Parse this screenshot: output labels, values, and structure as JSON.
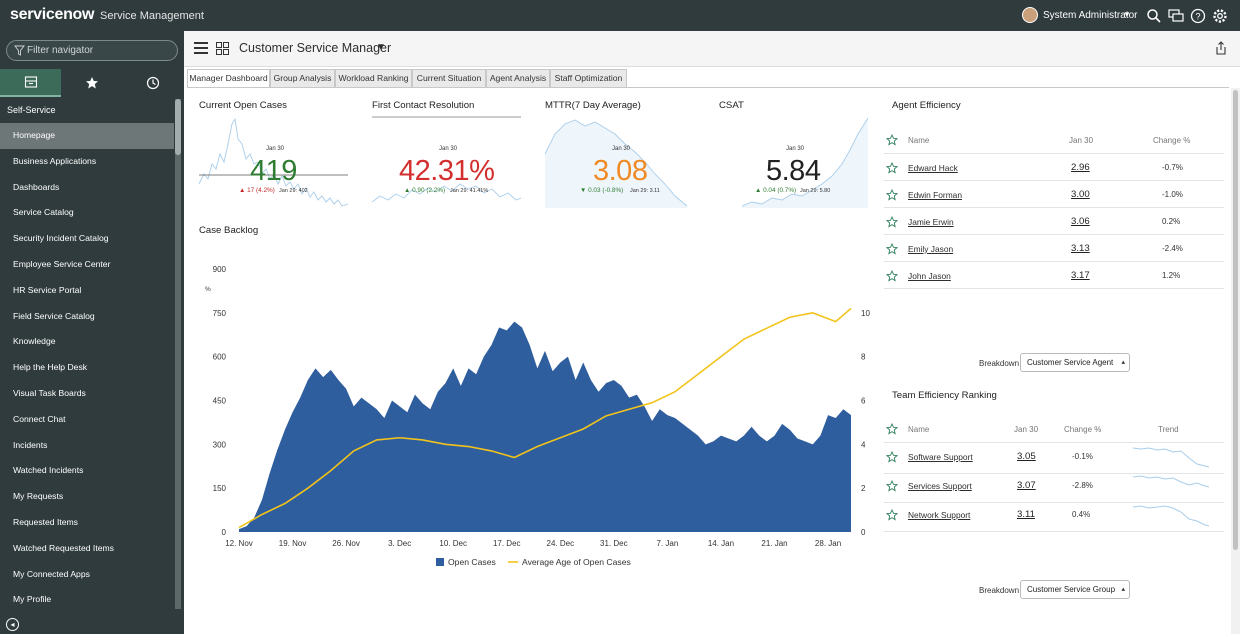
{
  "app": {
    "logo": "servicenow",
    "product": "Service Management",
    "user": "System Administrator"
  },
  "nav": {
    "filter_placeholder": "Filter navigator",
    "section": "Self-Service",
    "items": [
      {
        "label": "Homepage",
        "active": true
      },
      {
        "label": "Business Applications"
      },
      {
        "label": "Dashboards"
      },
      {
        "label": "Service Catalog"
      },
      {
        "label": "Security Incident Catalog"
      },
      {
        "label": "Employee Service Center"
      },
      {
        "label": "HR Service Portal"
      },
      {
        "label": "Field Service Catalog"
      },
      {
        "label": "Knowledge"
      },
      {
        "label": "Help the Help Desk"
      },
      {
        "label": "Visual Task Boards"
      },
      {
        "label": "Connect Chat"
      },
      {
        "label": "Incidents"
      },
      {
        "label": "Watched Incidents"
      },
      {
        "label": "My Requests"
      },
      {
        "label": "Requested Items"
      },
      {
        "label": "Watched Requested Items"
      },
      {
        "label": "My Connected Apps"
      },
      {
        "label": "My Profile"
      }
    ]
  },
  "dashboard": {
    "title": "Customer Service Manager",
    "tabs": [
      "Manager Dashboard",
      "Group Analysis",
      "Workload Ranking",
      "Current Situation",
      "Agent Analysis",
      "Staff Optimization"
    ]
  },
  "kpis": [
    {
      "title": "Current Open Cases",
      "date": "Jan 30",
      "value": "419",
      "delta": "▲ 17 (4.2%)",
      "prev": "Jan 29: 402",
      "color": "#2e7d32",
      "delta_color": "#c62828"
    },
    {
      "title": "First Contact Resolution",
      "date": "Jan 30",
      "value": "42.31%",
      "delta": "▲ 0.90 (2.2%)",
      "prev": "Jan 29: 41.41%",
      "color": "#d32f2f",
      "delta_color": "#2e7d32"
    },
    {
      "title": "MTTR(7 Day Average)",
      "date": "Jan 30",
      "value": "3.08",
      "delta": "▼ 0.03 (-0.8%)",
      "prev": "Jan 29: 3.11",
      "color": "#f08a24",
      "delta_color": "#2e7d32"
    },
    {
      "title": "CSAT",
      "date": "Jan 30",
      "value": "5.84",
      "delta": "▲ 0.04 (0.7%)",
      "prev": "Jan 29: 5.80",
      "color": "#222222",
      "delta_color": "#2e7d32"
    }
  ],
  "backlog": {
    "title": "Case Backlog"
  },
  "chart_data": {
    "type": "area",
    "title": "Case Backlog",
    "ylabel": "%",
    "x_ticks": [
      "12. Nov",
      "19. Nov",
      "26. Nov",
      "3. Dec",
      "10. Dec",
      "17. Dec",
      "24. Dec",
      "31. Dec",
      "7. Jan",
      "14. Jan",
      "21. Jan",
      "28. Jan"
    ],
    "ylim": [
      0,
      900
    ],
    "y_ticks": [
      0,
      150,
      300,
      450,
      600,
      750,
      900
    ],
    "y2lim": [
      0,
      12
    ],
    "y2_ticks": [
      0,
      2,
      4,
      6,
      8,
      10
    ],
    "legend": "bottom",
    "series": [
      {
        "name": "Open Cases",
        "axis": "left",
        "type": "area",
        "color": "#2f5e9e",
        "x": [
          0,
          1,
          2,
          3,
          4,
          5,
          6,
          7,
          8,
          9,
          10,
          11,
          12,
          13,
          14,
          15,
          16,
          17,
          18,
          19,
          20,
          21,
          22,
          23,
          24,
          25,
          26,
          27,
          28,
          29,
          30,
          31,
          32,
          33,
          34,
          35,
          36,
          37,
          38,
          39,
          40,
          41,
          42,
          43,
          44,
          45,
          46,
          47,
          48,
          49,
          50,
          51,
          52,
          53,
          54,
          55,
          56,
          57,
          58,
          59,
          60,
          61,
          62,
          63,
          64,
          65,
          66,
          67,
          68,
          69,
          70,
          71,
          72,
          73,
          74,
          75,
          76,
          77,
          78,
          79,
          80
        ],
        "values": [
          10,
          20,
          50,
          110,
          200,
          280,
          350,
          410,
          460,
          520,
          560,
          530,
          555,
          520,
          490,
          430,
          460,
          440,
          420,
          390,
          450,
          430,
          410,
          470,
          440,
          420,
          480,
          510,
          560,
          500,
          560,
          540,
          600,
          640,
          700,
          690,
          720,
          700,
          640,
          560,
          620,
          550,
          580,
          600,
          520,
          580,
          520,
          480,
          510,
          520,
          500,
          460,
          470,
          430,
          380,
          420,
          400,
          390,
          370,
          350,
          330,
          300,
          310,
          330,
          320,
          310,
          330,
          360,
          330,
          310,
          330,
          370,
          350,
          320,
          310,
          300,
          330,
          400,
          390,
          420,
          400
        ]
      },
      {
        "name": "Average Age of Open Cases",
        "axis": "right",
        "type": "line",
        "color": "#f2c31a",
        "x": [
          0,
          3,
          6,
          9,
          12,
          15,
          18,
          21,
          24,
          27,
          30,
          33,
          36,
          39,
          42,
          45,
          48,
          51,
          54,
          57,
          60,
          63,
          66,
          69,
          72,
          75,
          78,
          80
        ],
        "values": [
          0.2,
          0.8,
          1.3,
          2.0,
          2.8,
          3.7,
          4.2,
          4.3,
          4.2,
          4.0,
          3.9,
          3.7,
          3.4,
          3.9,
          4.3,
          4.7,
          5.3,
          5.6,
          5.9,
          6.4,
          7.2,
          8.0,
          8.8,
          9.3,
          9.8,
          10.0,
          9.6,
          10.2
        ]
      }
    ]
  },
  "agents": {
    "title": "Agent Efficiency",
    "col_name": "Name",
    "col_date": "Jan 30",
    "col_change": "Change %",
    "rows": [
      {
        "name": "Edward Hack",
        "value": "2.96",
        "change": "-0.7%"
      },
      {
        "name": "Edwin Forman",
        "value": "3.00",
        "change": "-1.0%"
      },
      {
        "name": "Jamie Erwin",
        "value": "3.06",
        "change": "0.2%"
      },
      {
        "name": "Emily Jason",
        "value": "3.13",
        "change": "-2.4%"
      },
      {
        "name": "John Jason",
        "value": "3.17",
        "change": "1.2%"
      }
    ],
    "breakdown_label": "Breakdown",
    "breakdown_value": "Customer Service Agent"
  },
  "teams": {
    "title": "Team Efficiency Ranking",
    "col_name": "Name",
    "col_date": "Jan 30",
    "col_change": "Change %",
    "col_trend": "Trend",
    "rows": [
      {
        "name": "Software Support",
        "value": "3.05",
        "change": "-0.1%"
      },
      {
        "name": "Services Support",
        "value": "3.07",
        "change": "-2.8%"
      },
      {
        "name": "Network Support",
        "value": "3.11",
        "change": "0.4%"
      }
    ],
    "breakdown_label": "Breakdown",
    "breakdown_value": "Customer Service Group"
  }
}
